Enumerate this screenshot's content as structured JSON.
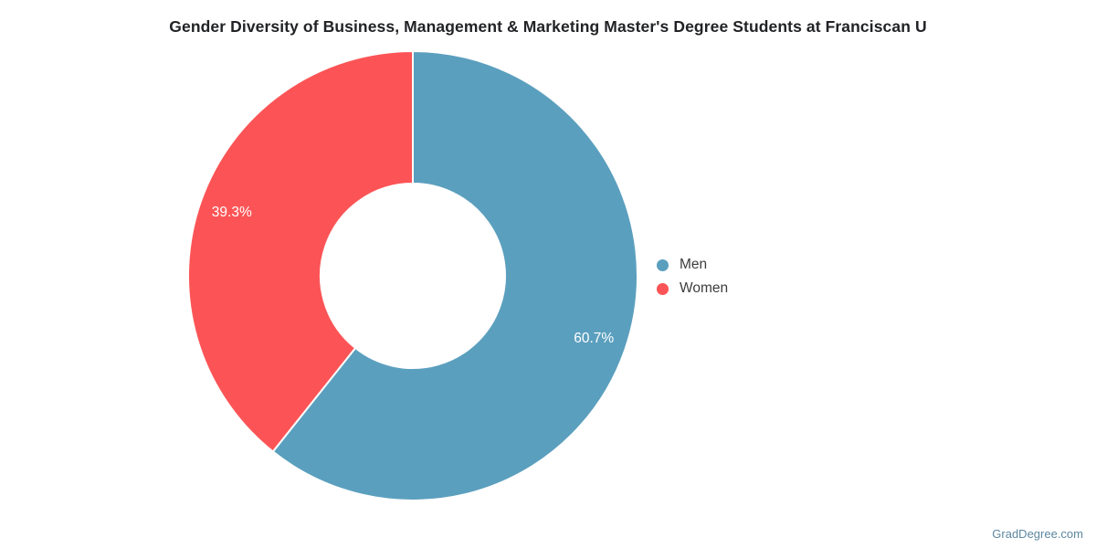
{
  "chart_data": {
    "type": "pie",
    "title": "Gender Diversity of Business, Management & Marketing Master's Degree Students at Franciscan U",
    "categories": [
      "Men",
      "Women"
    ],
    "values": [
      60.7,
      39.3
    ],
    "value_labels": [
      "60.7%",
      "39.3%"
    ],
    "colors": [
      "#5b9fbe",
      "#fc5456"
    ],
    "hole_ratio": 0.41,
    "start_angle": "top",
    "direction": "clockwise",
    "legend_position": "right",
    "label_text_color": "#ffffff",
    "slice_separator_color": "#ffffff"
  },
  "watermark": {
    "text": "GradDegree.com"
  }
}
